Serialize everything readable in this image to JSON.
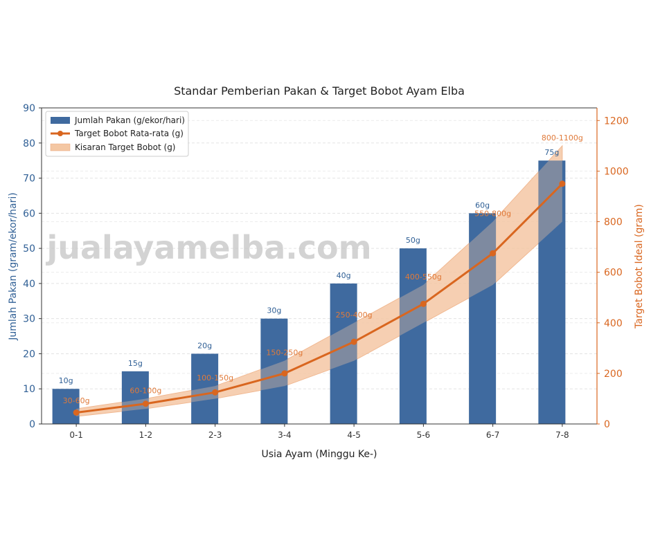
{
  "watermark": "jualayamelba.com",
  "colors": {
    "bar": "#3f6a9f",
    "line": "#d9661f",
    "band": "#f4c7a3",
    "left_axis": "#2f5f95",
    "right_axis": "#d9661f"
  },
  "chart_data": {
    "type": "bar",
    "title": "Standar Pemberian Pakan & Target Bobot Ayam Elba",
    "xlabel": "Usia Ayam (Minggu Ke-)",
    "ylabel": "Jumlah Pakan (gram/ekor/hari)",
    "y2label": "Target Bobot Ideal (gram)",
    "ylim": [
      0,
      90
    ],
    "y2lim": [
      0,
      1250
    ],
    "yticks": [
      0,
      10,
      20,
      30,
      40,
      50,
      60,
      70,
      80,
      90
    ],
    "y2ticks": [
      0,
      200,
      400,
      600,
      800,
      1000,
      1200
    ],
    "grid": "horizontal dashed",
    "legend_position": "top-left",
    "categories": [
      "0-1",
      "1-2",
      "2-3",
      "3-4",
      "4-5",
      "5-6",
      "6-7",
      "7-8"
    ],
    "series": [
      {
        "name": "Jumlah Pakan (g/ekor/hari)",
        "type": "bar",
        "axis": "left",
        "values": [
          10,
          15,
          20,
          30,
          40,
          50,
          60,
          75
        ],
        "labels": [
          "10g",
          "15g",
          "20g",
          "30g",
          "40g",
          "50g",
          "60g",
          "75g"
        ]
      },
      {
        "name": "Target Bobot Rata-rata (g)",
        "type": "line",
        "axis": "right",
        "values": [
          45,
          80,
          125,
          200,
          325,
          475,
          675,
          950
        ]
      },
      {
        "name": "Kisaran Target Bobot (g)",
        "type": "area-range",
        "axis": "right",
        "low": [
          30,
          60,
          100,
          150,
          250,
          400,
          550,
          800
        ],
        "high": [
          60,
          100,
          150,
          250,
          400,
          550,
          800,
          1100
        ],
        "labels": [
          "30-60g",
          "60-100g",
          "100-150g",
          "150-250g",
          "250-400g",
          "400-550g",
          "550-800g",
          "800-1100g"
        ]
      }
    ]
  }
}
